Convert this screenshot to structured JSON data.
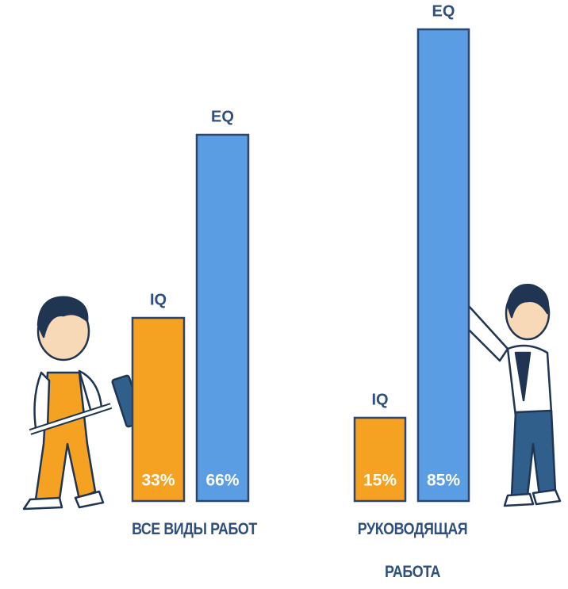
{
  "chart_data": {
    "type": "bar",
    "categories": [
      "ВСЕ ВИДЫ РАБОТ",
      "РУКОВОДЯЩАЯ РАБОТА"
    ],
    "series": [
      {
        "name": "IQ",
        "color": "#f5a122",
        "values": [
          33,
          15
        ],
        "value_labels": [
          "33%",
          "15%"
        ]
      },
      {
        "name": "EQ",
        "color": "#5b9de2",
        "values": [
          66,
          85
        ],
        "value_labels": [
          "66%",
          "85%"
        ]
      }
    ]
  }
}
